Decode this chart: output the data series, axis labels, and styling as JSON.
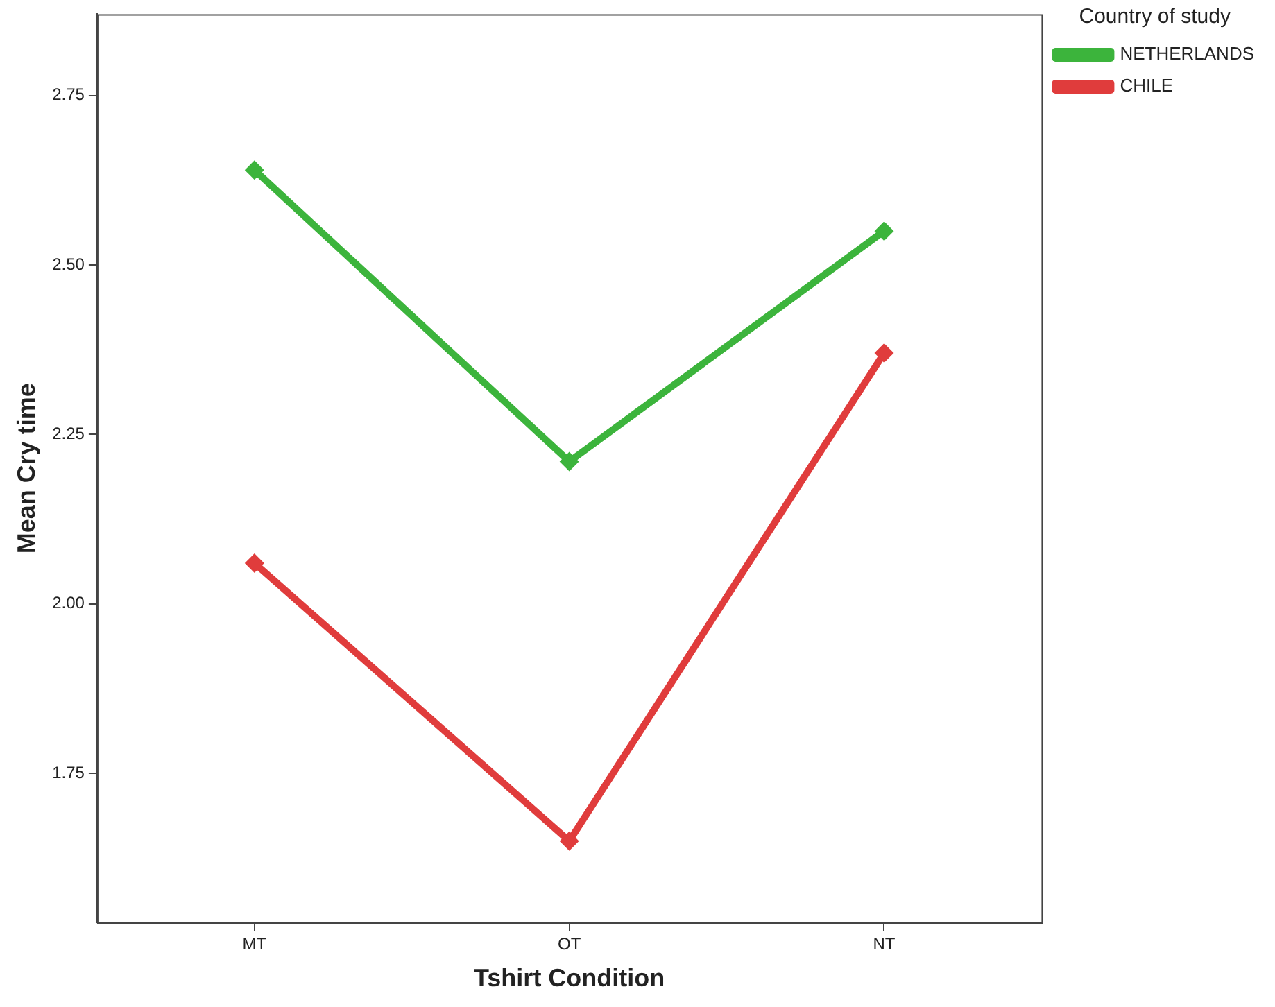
{
  "chart_data": {
    "type": "line",
    "xlabel": "Tshirt Condition",
    "ylabel": "Mean Cry time",
    "legend_title": "Country of study",
    "categories": [
      "MT",
      "OT",
      "NT"
    ],
    "series": [
      {
        "name": "NETHERLANDS",
        "color": "#3cb43c",
        "values": [
          2.64,
          2.21,
          2.55
        ]
      },
      {
        "name": "CHILE",
        "color": "#e03c3c",
        "values": [
          2.06,
          1.65,
          2.37
        ]
      }
    ],
    "ylim": [
      1.53,
      2.87
    ],
    "yticks": [
      {
        "value": 1.75,
        "label": "1.75"
      },
      {
        "value": 2,
        "label": "2.00"
      },
      2.25,
      {
        "value": 2.5,
        "label": "2.50"
      },
      2.75
    ],
    "grid": false,
    "legend": "top right",
    "marker": "diamond",
    "line_style": "solid"
  }
}
